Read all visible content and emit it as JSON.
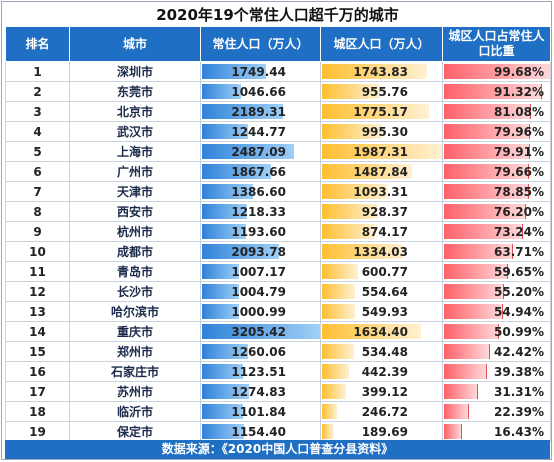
{
  "title": "2020年19个常住人口超千万的城市",
  "footer": "数据来源：《2020中国人口普查分县资料》",
  "colors": {
    "header": "#1f6fc4",
    "pop_bar": "#2f82d8",
    "urban_bar": "#ffbe30",
    "ratio_bar": "#ff6068"
  },
  "chart_data": {
    "type": "table",
    "headers": [
      "排名",
      "城市",
      "常住人口（万人）",
      "城区人口（万人）",
      "城区人口占常住人口比重"
    ],
    "rows": [
      {
        "rank": "1",
        "city": "深圳市",
        "pop": "1749.44",
        "urban": "1743.83",
        "ratio": "99.68%"
      },
      {
        "rank": "2",
        "city": "东莞市",
        "pop": "1046.66",
        "urban": "955.76",
        "ratio": "91.32%"
      },
      {
        "rank": "3",
        "city": "北京市",
        "pop": "2189.31",
        "urban": "1775.17",
        "ratio": "81.08%"
      },
      {
        "rank": "4",
        "city": "武汉市",
        "pop": "1244.77",
        "urban": "995.30",
        "ratio": "79.96%"
      },
      {
        "rank": "5",
        "city": "上海市",
        "pop": "2487.09",
        "urban": "1987.31",
        "ratio": "79.91%"
      },
      {
        "rank": "6",
        "city": "广州市",
        "pop": "1867.66",
        "urban": "1487.84",
        "ratio": "79.66%"
      },
      {
        "rank": "7",
        "city": "天津市",
        "pop": "1386.60",
        "urban": "1093.31",
        "ratio": "78.85%"
      },
      {
        "rank": "8",
        "city": "西安市",
        "pop": "1218.33",
        "urban": "928.37",
        "ratio": "76.20%"
      },
      {
        "rank": "9",
        "city": "杭州市",
        "pop": "1193.60",
        "urban": "874.17",
        "ratio": "73.24%"
      },
      {
        "rank": "10",
        "city": "成都市",
        "pop": "2093.78",
        "urban": "1334.03",
        "ratio": "63.71%"
      },
      {
        "rank": "11",
        "city": "青岛市",
        "pop": "1007.17",
        "urban": "600.77",
        "ratio": "59.65%"
      },
      {
        "rank": "12",
        "city": "长沙市",
        "pop": "1004.79",
        "urban": "554.64",
        "ratio": "55.20%"
      },
      {
        "rank": "13",
        "city": "哈尔滨市",
        "pop": "1000.99",
        "urban": "549.93",
        "ratio": "54.94%"
      },
      {
        "rank": "14",
        "city": "重庆市",
        "pop": "3205.42",
        "urban": "1634.40",
        "ratio": "50.99%"
      },
      {
        "rank": "15",
        "city": "郑州市",
        "pop": "1260.06",
        "urban": "534.48",
        "ratio": "42.42%"
      },
      {
        "rank": "16",
        "city": "石家庄市",
        "pop": "1123.51",
        "urban": "442.39",
        "ratio": "39.38%"
      },
      {
        "rank": "17",
        "city": "苏州市",
        "pop": "1274.83",
        "urban": "399.12",
        "ratio": "31.31%"
      },
      {
        "rank": "18",
        "city": "临沂市",
        "pop": "1101.84",
        "urban": "246.72",
        "ratio": "22.39%"
      },
      {
        "rank": "19",
        "city": "保定市",
        "pop": "1154.40",
        "urban": "189.69",
        "ratio": "16.43%"
      }
    ]
  }
}
